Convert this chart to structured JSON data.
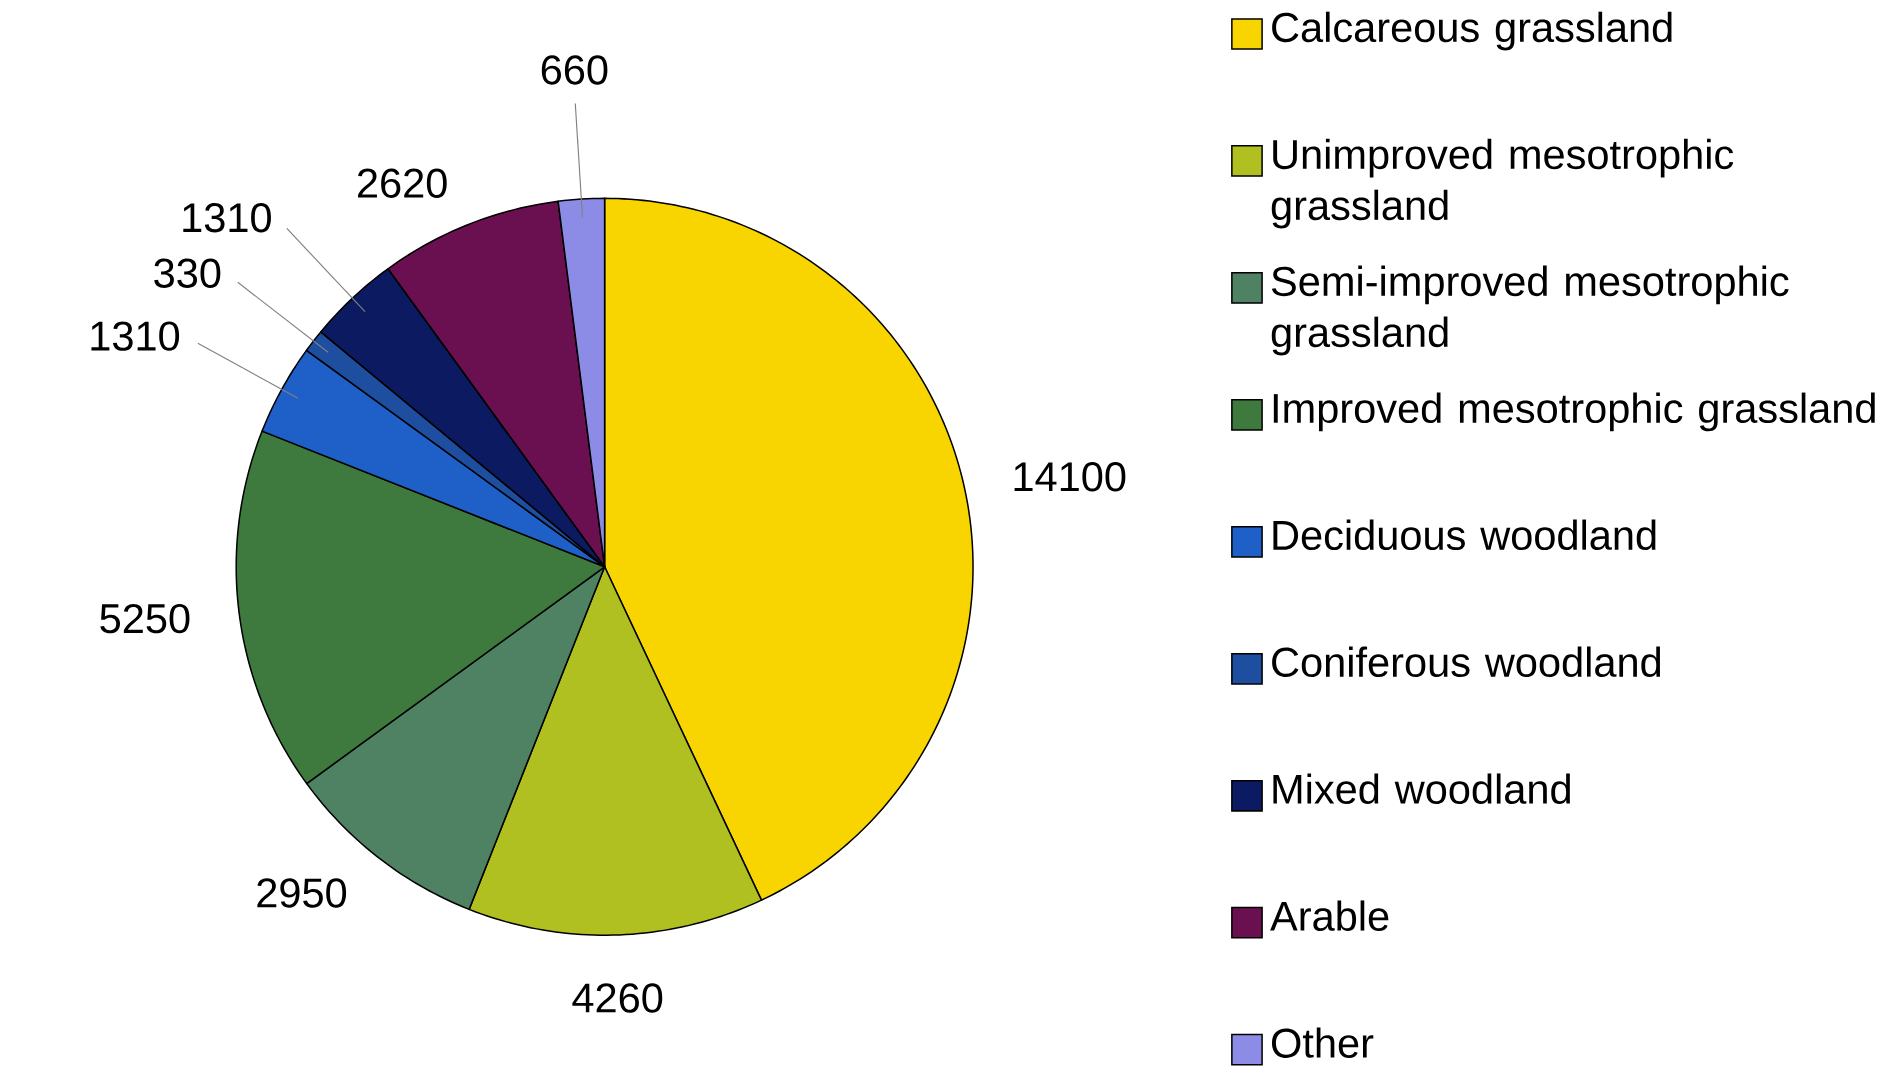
{
  "chart_data": {
    "type": "pie",
    "categories": [
      "Calcareous grassland",
      "Unimproved mesotrophic grassland",
      "Semi-improved mesotrophic grassland",
      "Improved mesotrophic grassland",
      "Deciduous woodland",
      "Coniferous woodland",
      "Mixed woodland",
      "Arable",
      "Other"
    ],
    "values": [
      14100,
      4260,
      2950,
      5250,
      1310,
      330,
      1310,
      2620,
      660
    ],
    "colors": [
      "#f8d400",
      "#b0c020",
      "#4e8262",
      "#3e7a3e",
      "#1f5fc8",
      "#1e4ea0",
      "#0c1a62",
      "#6a1050",
      "#8c8ce6"
    ],
    "data_labels": true,
    "legend": "right"
  }
}
